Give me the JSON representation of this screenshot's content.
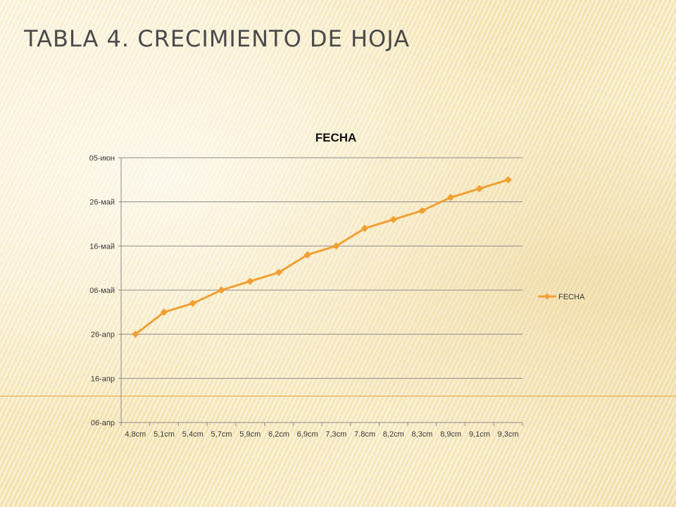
{
  "slide": {
    "title": "TABLA 4. CRECIMIENTO DE HOJA"
  },
  "colors": {
    "series": "#f0a032",
    "gridline": "#8c8c8c",
    "rule": "#e8a23c"
  },
  "chart_data": {
    "type": "line",
    "title": "FECHA",
    "xlabel": "",
    "ylabel": "",
    "categories": [
      "4,8cm",
      "5,1cm",
      "5,4cm",
      "5,7cm",
      "5,9cm",
      "6,2cm",
      "6,9cm",
      "7,3cm",
      "7.8cm",
      "8,2cm",
      "8,3cm",
      "8,9cm",
      "9,1cm",
      "9,3cm"
    ],
    "y_ticks": [
      "06-апр",
      "16-апр",
      "26-апр",
      "06-май",
      "16-май",
      "26-май",
      "05-июн"
    ],
    "ylim": [
      "06-апр",
      "05-июн"
    ],
    "series": [
      {
        "name": "FECHA",
        "marker": "diamond",
        "values": [
          "26-апр",
          "01-май",
          "03-май",
          "06-май",
          "08-май",
          "10-май",
          "14-май",
          "16-май",
          "20-май",
          "22-май",
          "24-май",
          "27-май",
          "29-май",
          "31-май"
        ]
      }
    ],
    "legend": {
      "position": "right",
      "entries": [
        "FECHA"
      ]
    },
    "grid": {
      "horizontal": true,
      "vertical": false
    }
  }
}
